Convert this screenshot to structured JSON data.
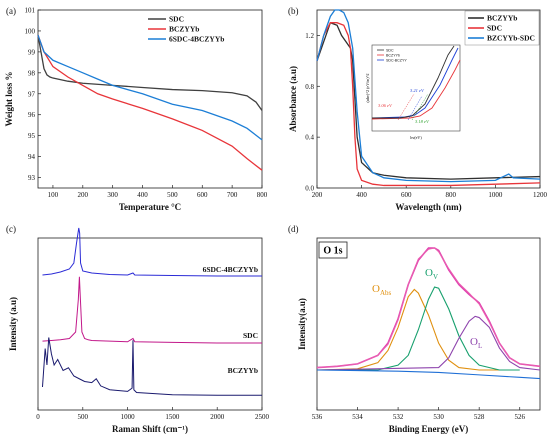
{
  "chart_data": [
    {
      "panel": "(a)",
      "type": "line",
      "xlabel": "Temperature °C",
      "ylabel": "Weight loss %",
      "xlim": [
        50,
        800
      ],
      "ylim": [
        92.5,
        101
      ],
      "xticks": [
        "100",
        "200",
        "300",
        "400",
        "500",
        "600",
        "700",
        "800"
      ],
      "yticks": [
        "93",
        "94",
        "95",
        "96",
        "97",
        "98",
        "99",
        "100",
        "101"
      ],
      "legend_position": "top-right",
      "series": [
        {
          "name": "SDC",
          "color": "#404040",
          "x": [
            50,
            60,
            70,
            80,
            90,
            100,
            150,
            200,
            300,
            400,
            500,
            600,
            700,
            750,
            780,
            800
          ],
          "y": [
            99.8,
            99.0,
            98.2,
            97.9,
            97.8,
            97.75,
            97.6,
            97.5,
            97.4,
            97.3,
            97.2,
            97.15,
            97.05,
            96.9,
            96.6,
            96.2
          ]
        },
        {
          "name": "BCZYYb",
          "color": "#e8353a",
          "x": [
            50,
            70,
            100,
            150,
            200,
            250,
            300,
            400,
            500,
            600,
            700,
            750,
            800
          ],
          "y": [
            99.8,
            99.0,
            98.3,
            97.8,
            97.4,
            97.0,
            96.75,
            96.3,
            95.8,
            95.25,
            94.5,
            93.9,
            93.35
          ]
        },
        {
          "name": "6SDC-4BCZYYb",
          "color": "#1c7ed6",
          "x": [
            50,
            70,
            100,
            150,
            200,
            250,
            300,
            400,
            500,
            600,
            700,
            750,
            800
          ],
          "y": [
            99.8,
            99.0,
            98.6,
            98.3,
            98.0,
            97.7,
            97.4,
            97.0,
            96.5,
            96.2,
            95.7,
            95.35,
            94.8
          ]
        }
      ]
    },
    {
      "panel": "(b)",
      "type": "line",
      "xlabel": "Wavelength (nm)",
      "ylabel": "Absorbance (a.u)",
      "xlim": [
        200,
        1200
      ],
      "ylim": [
        0,
        1.4
      ],
      "xticks": [
        "200",
        "400",
        "600",
        "800",
        "1000",
        "1200"
      ],
      "yticks": [
        "0.0",
        "0.4",
        "0.8",
        "1.2"
      ],
      "legend_position": "top-right",
      "series": [
        {
          "name": "BCZYYb",
          "color": "#303030",
          "x": [
            200,
            230,
            260,
            290,
            310,
            330,
            350,
            360,
            380,
            400,
            450,
            500,
            600,
            800,
            1000,
            1200
          ],
          "y": [
            1.0,
            1.15,
            1.3,
            1.28,
            1.2,
            1.15,
            1.1,
            1.0,
            0.4,
            0.2,
            0.12,
            0.1,
            0.08,
            0.07,
            0.08,
            0.09
          ]
        },
        {
          "name": "SDC",
          "color": "#e8353a",
          "x": [
            200,
            230,
            260,
            290,
            320,
            340,
            350,
            360,
            370,
            380,
            400,
            450,
            500,
            600,
            800,
            1000,
            1200
          ],
          "y": [
            1.0,
            1.2,
            1.3,
            1.3,
            1.28,
            1.2,
            1.1,
            0.8,
            0.4,
            0.15,
            0.06,
            0.03,
            0.02,
            0.02,
            0.02,
            0.03,
            0.04
          ]
        },
        {
          "name": "BZCYYb-SDC",
          "color": "#1c7ed6",
          "x": [
            200,
            230,
            260,
            280,
            300,
            320,
            340,
            360,
            380,
            400,
            450,
            500,
            600,
            800,
            1000,
            1060,
            1080,
            1200
          ],
          "y": [
            1.0,
            1.2,
            1.35,
            1.4,
            1.4,
            1.38,
            1.3,
            1.1,
            0.6,
            0.25,
            0.12,
            0.08,
            0.06,
            0.05,
            0.06,
            0.11,
            0.08,
            0.07
          ]
        }
      ],
      "inset": {
        "xlabel": "hv(eV)",
        "ylabel": "(αhv)^2 (eV/m)^2",
        "legend": [
          "SDC",
          "BCZYYb",
          "SDC-BCZYY"
        ],
        "annotations": [
          "3.21 eV",
          "3.06 eV",
          "3.18 eV"
        ]
      }
    },
    {
      "panel": "(c)",
      "type": "line",
      "xlabel": "Raman Shift (cm⁻¹)",
      "ylabel": "Intensity (a.u)",
      "xlim": [
        0,
        2500
      ],
      "xticks": [
        "0",
        "500",
        "1000",
        "1500",
        "2000",
        "2500"
      ],
      "labels": [
        "6SDC-4BCZYYb",
        "SDC",
        "BCZYYb"
      ],
      "series": [
        {
          "name": "6SDC-4BCZYYb",
          "color": "#2b2bd6",
          "x": [
            50,
            150,
            250,
            350,
            400,
            430,
            455,
            465,
            475,
            500,
            550,
            600,
            800,
            1000,
            1060,
            1080,
            1500,
            2000,
            2500
          ],
          "y": [
            0.06,
            0.08,
            0.12,
            0.18,
            0.3,
            0.7,
            1.0,
            0.9,
            0.3,
            0.14,
            0.12,
            0.1,
            0.07,
            0.06,
            0.1,
            0.06,
            0.05,
            0.04,
            0.04
          ]
        },
        {
          "name": "SDC",
          "color": "#c2188a",
          "x": [
            50,
            150,
            250,
            350,
            420,
            450,
            462,
            470,
            490,
            520,
            560,
            600,
            800,
            1000,
            1060,
            1080,
            1500,
            2000,
            2500
          ],
          "y": [
            0.06,
            0.07,
            0.08,
            0.1,
            0.2,
            0.7,
            1.05,
            0.8,
            0.2,
            0.1,
            0.08,
            0.07,
            0.06,
            0.05,
            0.1,
            0.05,
            0.04,
            0.03,
            0.03
          ]
        },
        {
          "name": "BCZYYb",
          "color": "#1a1a6e",
          "x": [
            50,
            80,
            100,
            120,
            150,
            180,
            220,
            280,
            340,
            400,
            460,
            520,
            600,
            650,
            700,
            800,
            1000,
            1050,
            1060,
            1070,
            1100,
            1500,
            2000,
            2500
          ],
          "y": [
            0.2,
            0.9,
            0.6,
            1.1,
            0.8,
            0.6,
            0.7,
            0.5,
            0.55,
            0.4,
            0.35,
            0.3,
            0.28,
            0.35,
            0.22,
            0.15,
            0.12,
            0.18,
            1.05,
            0.15,
            0.1,
            0.06,
            0.05,
            0.05
          ]
        }
      ]
    },
    {
      "panel": "(d)",
      "type": "line",
      "title": "O 1s",
      "xlabel": "Binding Energy (eV)",
      "ylabel": "Intensity(a.u)",
      "xlim": [
        536,
        525
      ],
      "xticks": [
        "536",
        "534",
        "532",
        "530",
        "528",
        "526"
      ],
      "peak_labels": [
        "O_Abs",
        "O_V",
        "O_L"
      ],
      "series": [
        {
          "name": "raw",
          "color": "#e040b0",
          "x": [
            536,
            535,
            534,
            533,
            532.5,
            532,
            531.5,
            531,
            530.5,
            530.2,
            530,
            529.5,
            529,
            528.5,
            528,
            527.5,
            527,
            526.5,
            526,
            525
          ],
          "y": [
            0.02,
            0.03,
            0.05,
            0.12,
            0.22,
            0.42,
            0.7,
            0.9,
            1.0,
            1.0,
            0.98,
            0.82,
            0.7,
            0.62,
            0.55,
            0.4,
            0.22,
            0.1,
            0.05,
            0.03
          ]
        },
        {
          "name": "fit",
          "color": "#ea5fb0",
          "x": [
            536,
            535,
            534,
            533,
            532.5,
            532,
            531.5,
            531,
            530.5,
            530.2,
            530,
            529.5,
            529,
            528.5,
            528,
            527.5,
            527,
            526.5,
            526,
            525
          ],
          "y": [
            0.02,
            0.03,
            0.05,
            0.12,
            0.21,
            0.41,
            0.7,
            0.91,
            0.99,
            1.0,
            0.97,
            0.83,
            0.71,
            0.63,
            0.54,
            0.39,
            0.22,
            0.1,
            0.05,
            0.03
          ]
        },
        {
          "name": "O_Abs",
          "color": "#e09010",
          "x": [
            536,
            534,
            533,
            532.5,
            532,
            531.5,
            531.2,
            531,
            530.5,
            530,
            529.5,
            529,
            528,
            527
          ],
          "y": [
            0.0,
            0.01,
            0.06,
            0.16,
            0.35,
            0.6,
            0.66,
            0.63,
            0.45,
            0.22,
            0.08,
            0.02,
            0.0,
            0.0
          ]
        },
        {
          "name": "O_V",
          "color": "#18a06e",
          "x": [
            536,
            533,
            532,
            531.5,
            531,
            530.5,
            530.2,
            530,
            529.5,
            529,
            528.5,
            528,
            527,
            526
          ],
          "y": [
            0.0,
            0.0,
            0.04,
            0.12,
            0.33,
            0.58,
            0.68,
            0.67,
            0.5,
            0.28,
            0.12,
            0.04,
            0.0,
            0.0
          ]
        },
        {
          "name": "O_L",
          "color": "#8e44ad",
          "x": [
            536,
            530,
            529.5,
            529,
            528.5,
            528.2,
            528,
            527.5,
            527,
            526.5,
            526,
            525
          ],
          "y": [
            0.0,
            0.02,
            0.1,
            0.26,
            0.4,
            0.44,
            0.43,
            0.35,
            0.18,
            0.07,
            0.02,
            0.0
          ]
        },
        {
          "name": "background",
          "color": "#1f6fd6",
          "x": [
            536,
            534,
            532,
            530,
            528,
            526,
            525
          ],
          "y": [
            0.0,
            -0.005,
            -0.01,
            -0.02,
            -0.04,
            -0.06,
            -0.07
          ]
        }
      ]
    }
  ]
}
